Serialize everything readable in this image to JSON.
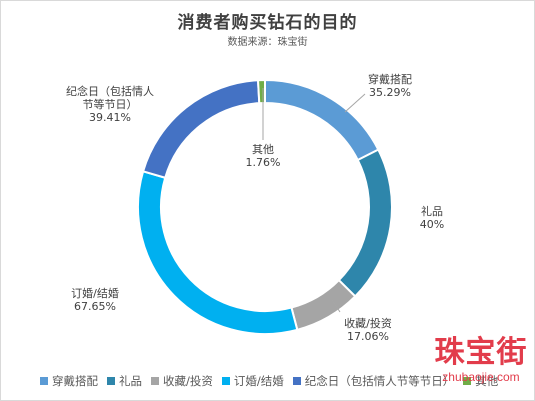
{
  "chart_data": {
    "type": "pie",
    "donut": true,
    "title": "消费者购买钻石的目的",
    "subtitle": "数据来源：珠宝街",
    "categories": [
      "穿戴搭配",
      "礼品",
      "收藏/投资",
      "订婚/结婚",
      "纪念日（包括情人节等节日）",
      "其他"
    ],
    "values": [
      35.29,
      40,
      17.06,
      67.65,
      39.41,
      1.76
    ],
    "data_labels": [
      {
        "name": "穿戴搭配",
        "value": "35.29%"
      },
      {
        "name": "礼品",
        "value": "40%"
      },
      {
        "name": "收藏/投资",
        "value": "17.06%"
      },
      {
        "name": "订婚/结婚",
        "value": "67.65%"
      },
      {
        "name": "纪念日（包括情人",
        "name2": "节等节日）",
        "value": "39.41%"
      },
      {
        "name": "其他",
        "value": "1.76%"
      }
    ],
    "colors": [
      "#5b9bd5",
      "#2e86ab",
      "#a5a5a5",
      "#00b0f0",
      "#4472c4",
      "#70ad47"
    ],
    "legend_position": "bottom"
  },
  "watermark": {
    "cn": "珠宝街",
    "en": "zhubaojie.com"
  }
}
